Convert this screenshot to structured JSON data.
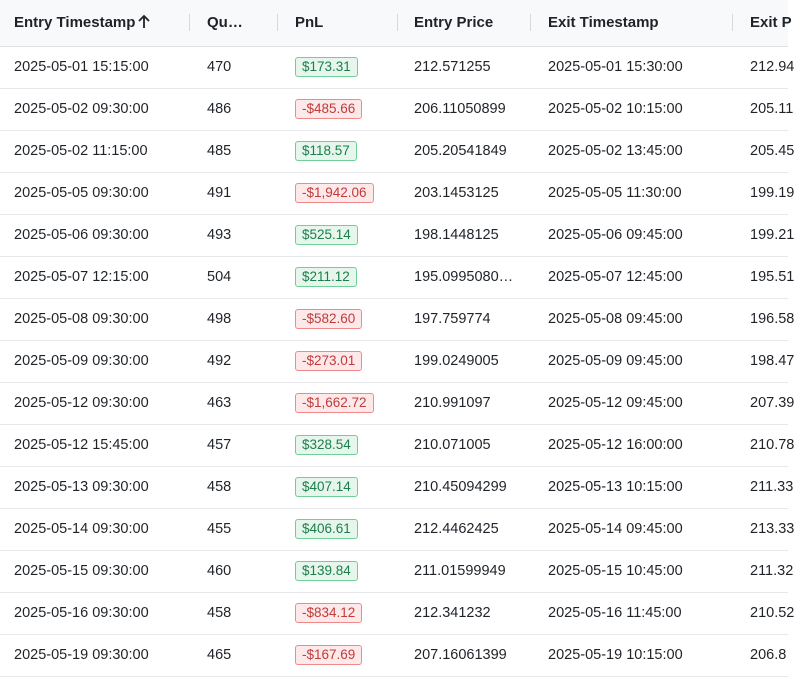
{
  "table": {
    "columns": [
      "Entry Timestamp",
      "Qu…",
      "PnL",
      "Entry Price",
      "Exit Timestamp",
      "Exit P"
    ],
    "rows": [
      [
        "2025-05-01 15:15:00",
        "470",
        "$173.31",
        "212.571255",
        "2025-05-01 15:30:00",
        "212.94"
      ],
      [
        "2025-05-02 09:30:00",
        "486",
        "-$485.66",
        "206.11050899",
        "2025-05-02 10:15:00",
        "205.11"
      ],
      [
        "2025-05-02 11:15:00",
        "485",
        "$118.57",
        "205.20541849",
        "2025-05-02 13:45:00",
        "205.45"
      ],
      [
        "2025-05-05 09:30:00",
        "491",
        "-$1,942.06",
        "203.1453125",
        "2025-05-05 11:30:00",
        "199.19"
      ],
      [
        "2025-05-06 09:30:00",
        "493",
        "$525.14",
        "198.1448125",
        "2025-05-06 09:45:00",
        "199.21"
      ],
      [
        "2025-05-07 12:15:00",
        "504",
        "$211.12",
        "195.0995080…",
        "2025-05-07 12:45:00",
        "195.51"
      ],
      [
        "2025-05-08 09:30:00",
        "498",
        "-$582.60",
        "197.759774",
        "2025-05-08 09:45:00",
        "196.58"
      ],
      [
        "2025-05-09 09:30:00",
        "492",
        "-$273.01",
        "199.0249005",
        "2025-05-09 09:45:00",
        "198.47"
      ],
      [
        "2025-05-12 09:30:00",
        "463",
        "-$1,662.72",
        "210.991097",
        "2025-05-12 09:45:00",
        "207.39"
      ],
      [
        "2025-05-12 15:45:00",
        "457",
        "$328.54",
        "210.071005",
        "2025-05-12 16:00:00",
        "210.78"
      ],
      [
        "2025-05-13 09:30:00",
        "458",
        "$407.14",
        "210.45094299",
        "2025-05-13 10:15:00",
        "211.33"
      ],
      [
        "2025-05-14 09:30:00",
        "455",
        "$406.61",
        "212.4462425",
        "2025-05-14 09:45:00",
        "213.33"
      ],
      [
        "2025-05-15 09:30:00",
        "460",
        "$139.84",
        "211.01599949",
        "2025-05-15 10:45:00",
        "211.32"
      ],
      [
        "2025-05-16 09:30:00",
        "458",
        "-$834.12",
        "212.341232",
        "2025-05-16 11:45:00",
        "210.52"
      ],
      [
        "2025-05-19 09:30:00",
        "465",
        "-$167.69",
        "207.16061399",
        "2025-05-19 10:15:00",
        "206.8"
      ]
    ]
  }
}
